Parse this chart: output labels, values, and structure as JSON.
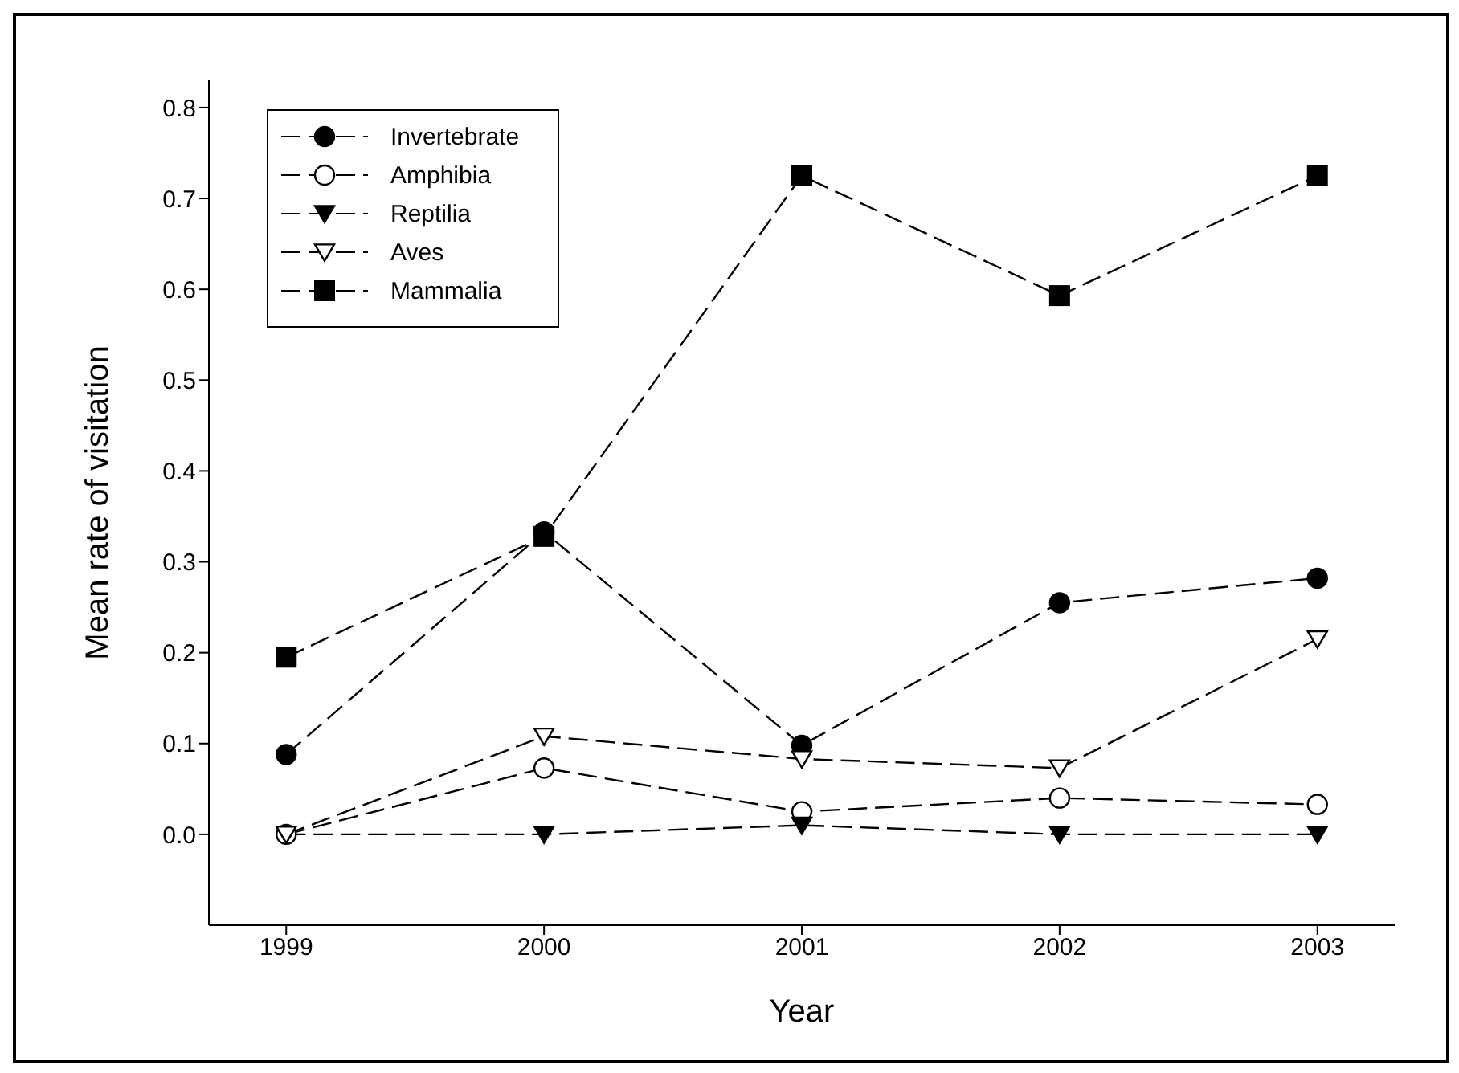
{
  "chart_data": {
    "type": "line",
    "xlabel": "Year",
    "ylabel": "Mean rate of visitation",
    "x": [
      1999,
      2000,
      2001,
      2002,
      2003
    ],
    "series": [
      {
        "name": "Invertebrate",
        "color": "#000000",
        "marker": "circle",
        "values": [
          0.088,
          0.333,
          0.098,
          0.255,
          0.282
        ]
      },
      {
        "name": "Amphibia",
        "color": "#000000",
        "marker": "circle-open",
        "values": [
          0.0,
          0.073,
          0.025,
          0.04,
          0.033
        ]
      },
      {
        "name": "Reptilia",
        "color": "#000000",
        "marker": "triangle",
        "values": [
          0.0,
          0.0,
          0.01,
          0.0,
          0.0
        ]
      },
      {
        "name": "Aves",
        "color": "#000000",
        "marker": "triangle-open",
        "values": [
          0.0,
          0.108,
          0.083,
          0.073,
          0.215
        ]
      },
      {
        "name": "Mammalia",
        "color": "#000000",
        "marker": "square",
        "values": [
          0.195,
          0.328,
          0.725,
          0.593,
          0.725
        ]
      }
    ],
    "xlim": [
      1998.7,
      2003.3
    ],
    "xticks": [
      1999,
      2000,
      2001,
      2002,
      2003
    ],
    "ylim": [
      -0.1,
      0.83
    ],
    "yticks": [
      {
        "value": 0,
        "label": "0.0"
      },
      {
        "value": 0.1,
        "label": "0.1"
      },
      {
        "value": 0.2,
        "label": "0.2"
      },
      {
        "value": 0.3,
        "label": "0.3"
      },
      {
        "value": 0.4,
        "label": "0.4"
      },
      {
        "value": 0.5,
        "label": "0.5"
      },
      {
        "value": 0.6,
        "label": "0.6"
      },
      {
        "value": 0.7,
        "label": "0.7"
      },
      {
        "value": 0.8,
        "label": "0.8"
      }
    ],
    "line_style": "dashed",
    "legend": "top left",
    "grid": false
  }
}
